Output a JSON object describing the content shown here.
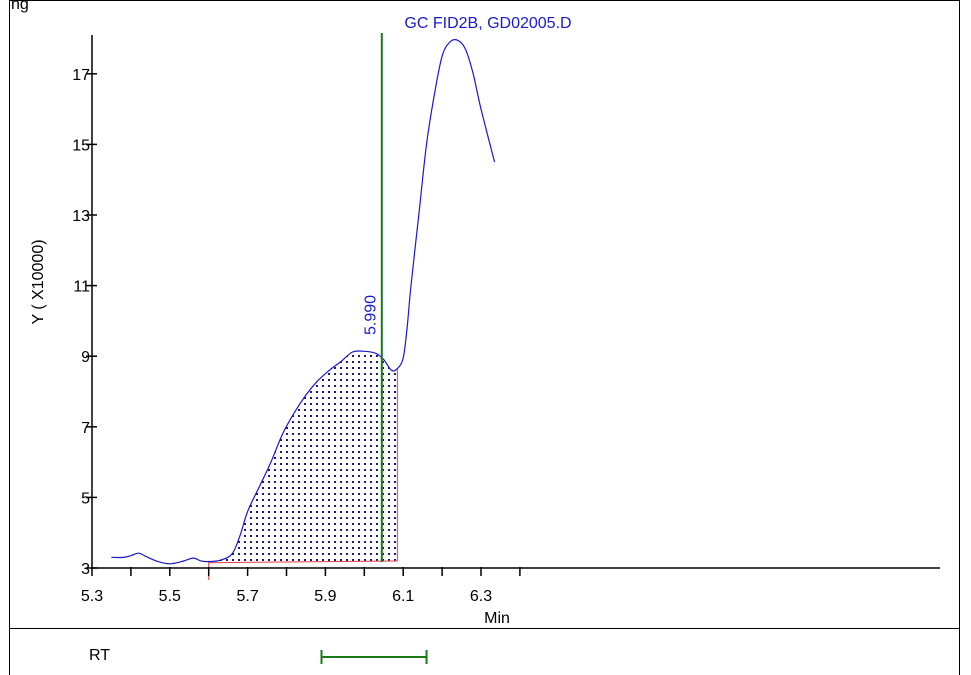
{
  "header": {
    "top_left_fragment": "ng"
  },
  "chart_data": {
    "type": "line",
    "title": "GC FID2B, GD02005.D",
    "xlabel": "Min",
    "ylabel": "Y ( X10000)",
    "xlim": [
      5.3,
      6.4
    ],
    "ylim": [
      3,
      18
    ],
    "xticks": [
      5.3,
      5.5,
      5.7,
      5.9,
      6.1,
      6.3
    ],
    "xtick_labels": [
      "5.3",
      "5.5",
      "5.7",
      "5.9",
      "6.1",
      "6.3"
    ],
    "yticks": [
      3,
      5,
      7,
      9,
      11,
      13,
      15,
      17
    ],
    "ytick_labels": [
      "3",
      "5",
      "7",
      "9",
      "11",
      "13",
      "15",
      "17"
    ],
    "series": [
      {
        "x": [
          5.35,
          5.38,
          5.4,
          5.42,
          5.44,
          5.47,
          5.5,
          5.53,
          5.56,
          5.58,
          5.6,
          5.63,
          5.66,
          5.68,
          5.7,
          5.73,
          5.76,
          5.79,
          5.82,
          5.85,
          5.88,
          5.91,
          5.94,
          5.97,
          6.0,
          6.03,
          6.05,
          6.07,
          6.085,
          6.1,
          6.11,
          6.12,
          6.14,
          6.16,
          6.18,
          6.2,
          6.22,
          6.24,
          6.26,
          6.28,
          6.3,
          6.335
        ],
        "y": [
          3.3,
          3.3,
          3.35,
          3.42,
          3.32,
          3.18,
          3.12,
          3.18,
          3.28,
          3.2,
          3.18,
          3.22,
          3.4,
          3.9,
          4.6,
          5.3,
          6.0,
          6.8,
          7.4,
          7.9,
          8.3,
          8.6,
          8.85,
          9.12,
          9.14,
          9.08,
          8.9,
          8.6,
          8.65,
          8.95,
          9.8,
          11.0,
          13.0,
          15.0,
          16.4,
          17.5,
          17.9,
          17.95,
          17.7,
          17.0,
          16.0,
          14.5
        ]
      }
    ],
    "integrated_region": {
      "x_start": 5.6,
      "x_end": 6.085,
      "baseline": [
        3.15,
        3.2
      ]
    },
    "peak_label": "5.990",
    "peak_x": 5.99,
    "rt_marker_x": 6.045,
    "rt_range": [
      5.89,
      6.16
    ]
  },
  "footer": {
    "rt_label": "RT"
  }
}
